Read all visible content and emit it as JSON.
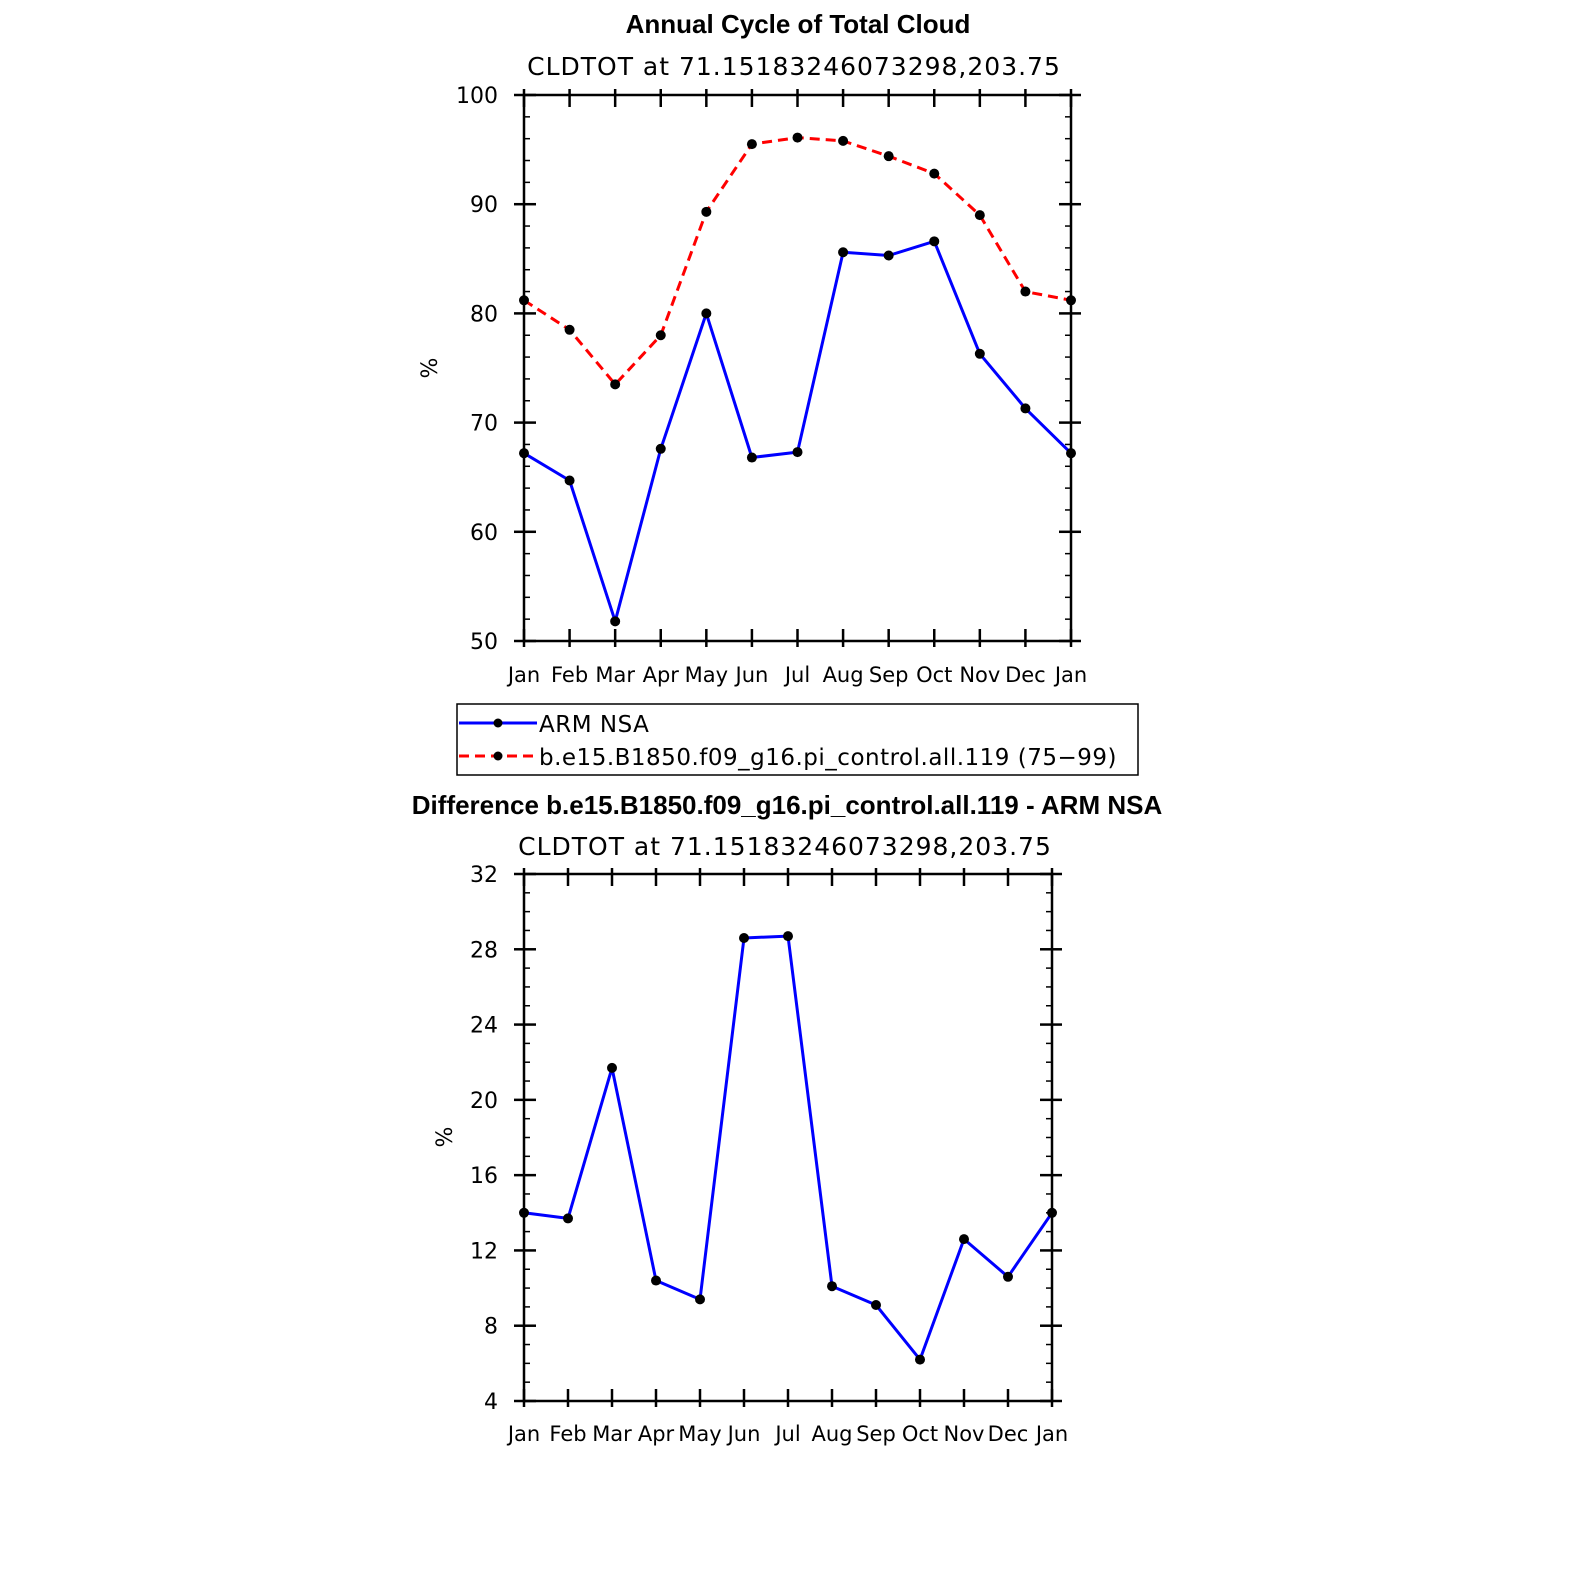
{
  "colors": {
    "obs": "#0000ff",
    "model": "#ff0000",
    "marker": "#000000",
    "frame": "#000000"
  },
  "chart_data": [
    {
      "type": "line",
      "title": "Annual Cycle of Total Cloud",
      "subtitle": "CLDTOT at 71.15183246073298,203.75",
      "ylabel": "%",
      "ylim": [
        50,
        100
      ],
      "yticks": [
        "50",
        "60",
        "70",
        "80",
        "90",
        "100"
      ],
      "ytick_values": [
        50,
        60,
        70,
        80,
        90,
        100
      ],
      "categories": [
        "Jan",
        "Feb",
        "Mar",
        "Apr",
        "May",
        "Jun",
        "Jul",
        "Aug",
        "Sep",
        "Oct",
        "Nov",
        "Dec",
        "Jan"
      ],
      "series": [
        {
          "name": "ARM NSA",
          "style": "solid",
          "color": "#0000ff",
          "values": [
            67.2,
            64.7,
            51.8,
            67.6,
            80.0,
            66.8,
            67.3,
            85.6,
            85.3,
            86.6,
            76.3,
            71.3,
            67.2
          ]
        },
        {
          "name": "b.e15.B1850.f09_g16.pi_control.all.119 (75-99)",
          "style": "dashed",
          "color": "#ff0000",
          "values": [
            81.2,
            78.5,
            73.5,
            78.0,
            89.3,
            95.5,
            96.1,
            95.8,
            94.4,
            92.8,
            89.0,
            82.0,
            81.2
          ]
        }
      ],
      "legend": [
        {
          "label": "ARM NSA"
        },
        {
          "label": "b.e15.B1850.f09_g16.pi_control.all.119 (75−99)"
        }
      ]
    },
    {
      "type": "line",
      "title": "Difference b.e15.B1850.f09_g16.pi_control.all.119 - ARM NSA",
      "subtitle": "CLDTOT at 71.15183246073298,203.75",
      "ylabel": "%",
      "ylim": [
        4,
        32
      ],
      "yticks": [
        "4",
        "8",
        "12",
        "16",
        "20",
        "24",
        "28",
        "32"
      ],
      "ytick_values": [
        4,
        8,
        12,
        16,
        20,
        24,
        28,
        32
      ],
      "categories": [
        "Jan",
        "Feb",
        "Mar",
        "Apr",
        "May",
        "Jun",
        "Jul",
        "Aug",
        "Sep",
        "Oct",
        "Nov",
        "Dec",
        "Jan"
      ],
      "series": [
        {
          "name": "Difference",
          "style": "solid",
          "color": "#0000ff",
          "values": [
            14.0,
            13.7,
            21.7,
            10.4,
            9.4,
            28.6,
            28.7,
            10.1,
            9.1,
            6.2,
            12.6,
            10.6,
            14.0
          ]
        }
      ]
    }
  ]
}
